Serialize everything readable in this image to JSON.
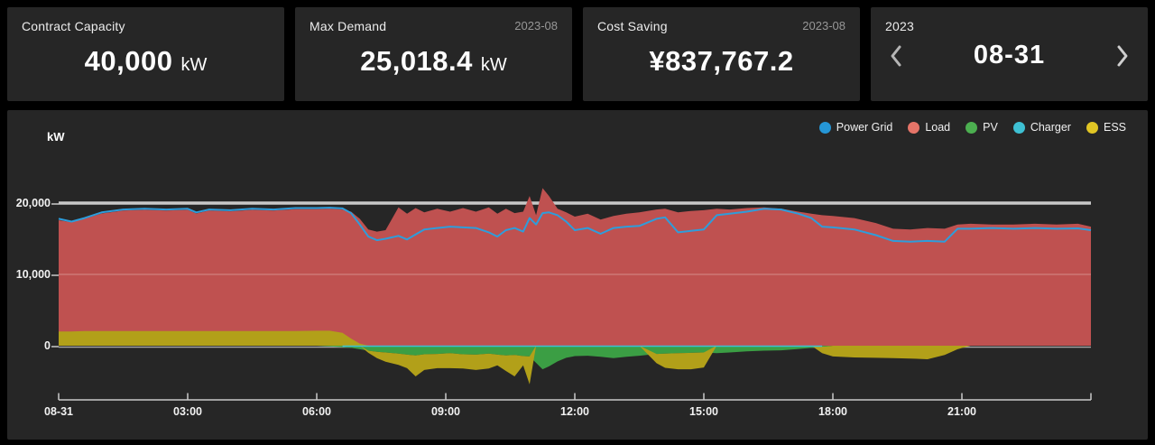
{
  "cards": [
    {
      "title": "Contract Capacity",
      "period": "",
      "value": "40,000",
      "unit": "kW"
    },
    {
      "title": "Max Demand",
      "period": "2023-08",
      "value": "25,018.4",
      "unit": "kW"
    },
    {
      "title": "Cost Saving",
      "period": "2023-08",
      "value": "¥837,767.2",
      "unit": ""
    }
  ],
  "date_nav": {
    "year": "2023",
    "date": "08-31"
  },
  "chart_data": {
    "type": "area",
    "unit_label": "kW",
    "x_axis_start_label": "08-31",
    "legend_position": "top-right",
    "grid_on": true,
    "ref_line_value": 20000,
    "ylim": [
      -7600,
      25700
    ],
    "x_range_hours": [
      0,
      24
    ],
    "y_ticks": [
      {
        "label": "0",
        "value": 0
      },
      {
        "label": "10,000",
        "value": 10000
      },
      {
        "label": "20,000",
        "value": 20000
      }
    ],
    "x_ticks": [
      {
        "label": "08-31",
        "hour": 0
      },
      {
        "label": "03:00",
        "hour": 3
      },
      {
        "label": "06:00",
        "hour": 6
      },
      {
        "label": "09:00",
        "hour": 9
      },
      {
        "label": "12:00",
        "hour": 12
      },
      {
        "label": "15:00",
        "hour": 15
      },
      {
        "label": "18:00",
        "hour": 18
      },
      {
        "label": "21:00",
        "hour": 21
      }
    ],
    "axis_colors": {
      "axis_line": "#c9c9c9",
      "ref_line": "#c8c8c8",
      "zero_line": "#a9a9a9",
      "minor_grid": "rgba(255,255,255,0.33)"
    },
    "x_hours": [
      0,
      0.3,
      0.6,
      1,
      1.5,
      2,
      2.5,
      3,
      3.2,
      3.5,
      4,
      4.5,
      5,
      5.5,
      6,
      6.3,
      6.6,
      6.8,
      7,
      7.2,
      7.4,
      7.6,
      7.9,
      8.1,
      8.3,
      8.5,
      8.8,
      9.1,
      9.4,
      9.7,
      10,
      10.2,
      10.4,
      10.6,
      10.8,
      10.95,
      11.1,
      11.25,
      11.4,
      11.6,
      11.8,
      12,
      12.3,
      12.6,
      12.9,
      13.2,
      13.5,
      13.9,
      14.1,
      14.4,
      14.7,
      15,
      15.3,
      15.6,
      16,
      16.4,
      16.8,
      17.2,
      17.5,
      17.75,
      18,
      18.5,
      19,
      19.4,
      19.8,
      20.2,
      20.6,
      20.9,
      21.2,
      21.7,
      22.2,
      22.7,
      23.2,
      23.7,
      24
    ],
    "series": [
      {
        "name": "Power Grid",
        "kind": "line",
        "color": "#2e9ddb",
        "legend_color": "#2596d6",
        "values": [
          17800,
          17400,
          17900,
          18700,
          19100,
          19200,
          19100,
          19200,
          18700,
          19100,
          19000,
          19200,
          19100,
          19300,
          19300,
          19350,
          19250,
          18600,
          17000,
          15300,
          14800,
          15000,
          15400,
          14900,
          15600,
          16300,
          16500,
          16700,
          16600,
          16500,
          15900,
          15300,
          16200,
          16500,
          16000,
          17900,
          17000,
          18600,
          18700,
          18300,
          17400,
          16200,
          16500,
          15700,
          16500,
          16700,
          16800,
          17800,
          18000,
          15900,
          16100,
          16300,
          18300,
          18500,
          18800,
          19200,
          19100,
          18500,
          17900,
          16700,
          16600,
          16300,
          15500,
          14700,
          14600,
          14700,
          14600,
          16400,
          16400,
          16500,
          16400,
          16500,
          16400,
          16450,
          16200
        ]
      },
      {
        "name": "Load",
        "kind": "area",
        "color": "#bf5150",
        "legend_color": "#e57468",
        "values": [
          17600,
          17300,
          17800,
          18550,
          18950,
          19050,
          18950,
          19050,
          18550,
          18950,
          18850,
          19050,
          18950,
          19150,
          19150,
          19200,
          19100,
          18800,
          17800,
          16300,
          16000,
          16200,
          19400,
          18500,
          19300,
          18700,
          19200,
          18800,
          19300,
          18800,
          19400,
          18500,
          19200,
          18600,
          18800,
          21000,
          18300,
          22100,
          21000,
          19200,
          18700,
          18100,
          18500,
          17700,
          18200,
          18500,
          18700,
          19100,
          19200,
          18700,
          18900,
          19000,
          19200,
          19100,
          19300,
          19400,
          19200,
          18800,
          18500,
          18300,
          18200,
          17900,
          17200,
          16400,
          16300,
          16500,
          16400,
          17000,
          17100,
          17000,
          17000,
          17100,
          17000,
          17100,
          16700
        ]
      },
      {
        "name": "PV",
        "kind": "area",
        "color": "#3b9e44",
        "legend_color": "#4caf50",
        "values": [
          0,
          0,
          0,
          0,
          0,
          0,
          0,
          0,
          0,
          0,
          0,
          0,
          0,
          0,
          0,
          -100,
          -200,
          -300,
          -500,
          -700,
          -850,
          -950,
          -1100,
          -1250,
          -1350,
          -1200,
          -1150,
          -1050,
          -1200,
          -1250,
          -1100,
          -1250,
          -1350,
          -1300,
          -1450,
          -1500,
          -2400,
          -3300,
          -2900,
          -2200,
          -1700,
          -1450,
          -1400,
          -1550,
          -1750,
          -1550,
          -1400,
          -1150,
          -1100,
          -1050,
          -1000,
          -950,
          -1050,
          -950,
          -800,
          -700,
          -650,
          -450,
          -300,
          -150,
          0,
          0,
          0,
          0,
          0,
          0,
          0,
          0,
          0,
          0,
          0,
          0,
          0,
          0,
          0
        ]
      },
      {
        "name": "Charger",
        "kind": "line",
        "color": "#3ec0d3",
        "legend_color": "#3ec0d3",
        "values": [
          null,
          null,
          null,
          null,
          null,
          null,
          null,
          null,
          null,
          null,
          null,
          null,
          null,
          null,
          null,
          null,
          -60,
          -60,
          -60,
          -60,
          -60,
          -60,
          -60,
          -60,
          -60,
          -60,
          -60,
          -60,
          -60,
          -60,
          -60,
          -60,
          -60,
          -60,
          -60,
          -60,
          -60,
          -60,
          -60,
          -60,
          -60,
          -60,
          -60,
          -60,
          -60,
          -60,
          -60,
          -60,
          -60,
          -60,
          -60,
          -60,
          -60,
          -60,
          -60,
          -60,
          -60,
          -60,
          -60,
          -60,
          null,
          null,
          null,
          null,
          null,
          null,
          null,
          null,
          null,
          null,
          null,
          null,
          null,
          null,
          null
        ]
      },
      {
        "name": "ESS",
        "kind": "area",
        "color": "#b2a019",
        "legend_color": "#e0c524",
        "values": [
          2000,
          2000,
          2050,
          2050,
          2050,
          2050,
          2050,
          2050,
          2050,
          2050,
          2050,
          2050,
          2050,
          2050,
          2100,
          2100,
          1800,
          1000,
          300,
          -300,
          -900,
          -1300,
          -1600,
          -1900,
          -2950,
          -2200,
          -2000,
          -2100,
          -2000,
          -2150,
          -2100,
          -1500,
          -2200,
          -3000,
          -1300,
          -3900,
          0,
          0,
          0,
          0,
          0,
          0,
          0,
          0,
          0,
          0,
          0,
          -1300,
          -2000,
          -2250,
          -2300,
          -2100,
          0,
          0,
          0,
          0,
          0,
          0,
          0,
          -900,
          -1500,
          -1650,
          -1700,
          -1750,
          -1800,
          -1900,
          -1300,
          -500,
          0,
          0,
          0,
          0,
          0,
          0,
          0
        ]
      }
    ]
  }
}
